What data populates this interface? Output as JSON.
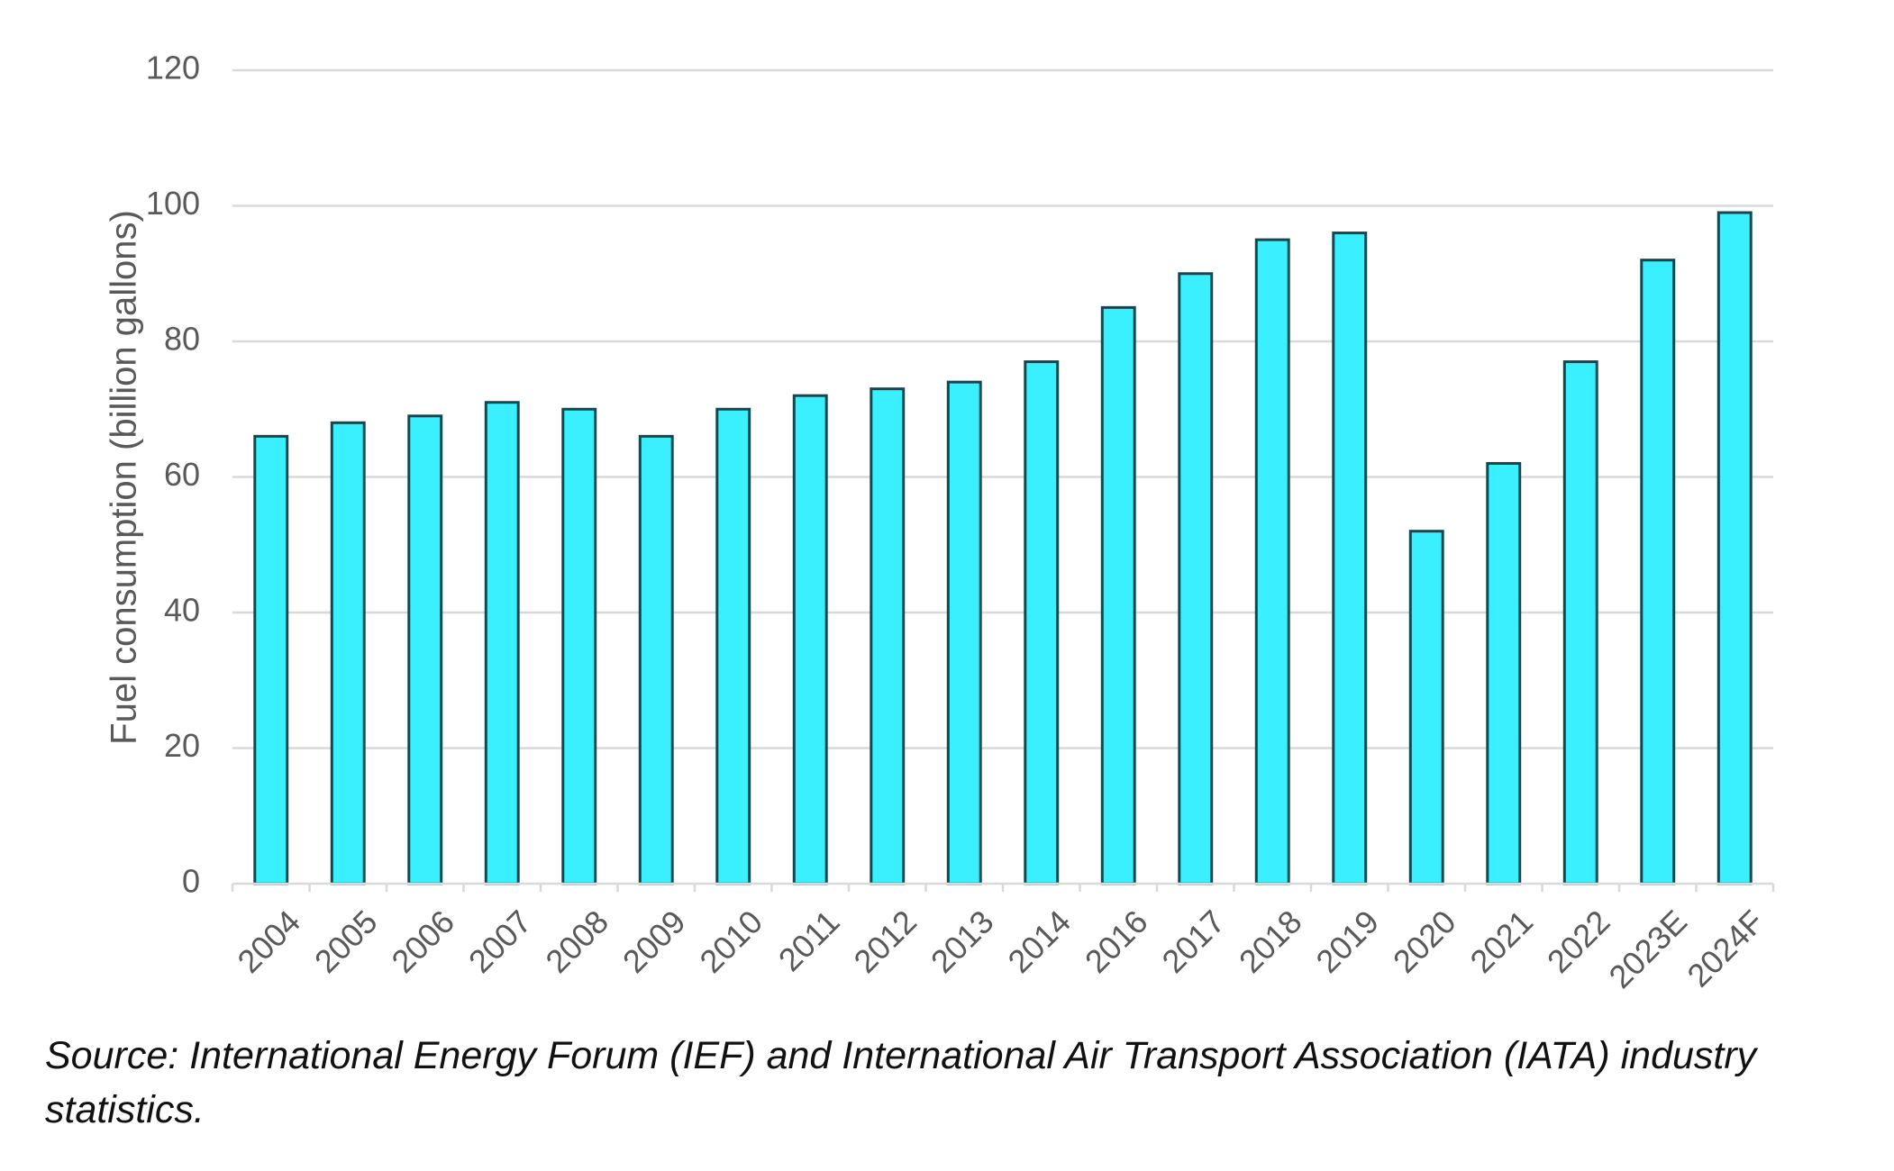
{
  "chart_data": {
    "type": "bar",
    "categories": [
      "2004",
      "2005",
      "2006",
      "2007",
      "2008",
      "2009",
      "2010",
      "2011",
      "2012",
      "2013",
      "2014",
      "2016",
      "2017",
      "2018",
      "2019",
      "2020",
      "2021",
      "2022",
      "2023E",
      "2024F"
    ],
    "values": [
      66,
      68,
      69,
      71,
      70,
      66,
      70,
      72,
      73,
      74,
      77,
      85,
      90,
      95,
      96,
      52,
      62,
      77,
      92,
      99
    ],
    "title": "",
    "xlabel": "",
    "ylabel": "Fuel consumption (billion gallons)",
    "ylim": [
      0,
      120
    ],
    "yticks": [
      0,
      20,
      40,
      60,
      80,
      100,
      120
    ],
    "grid": true,
    "legend": "none",
    "bar_color": "#3AF0FF",
    "bar_edge_color": "#0E4A50",
    "grid_color": "#D9D9D9"
  },
  "source": {
    "text": "Source: International Energy Forum (IEF) and International Air Transport Association (IATA) industry statistics."
  }
}
